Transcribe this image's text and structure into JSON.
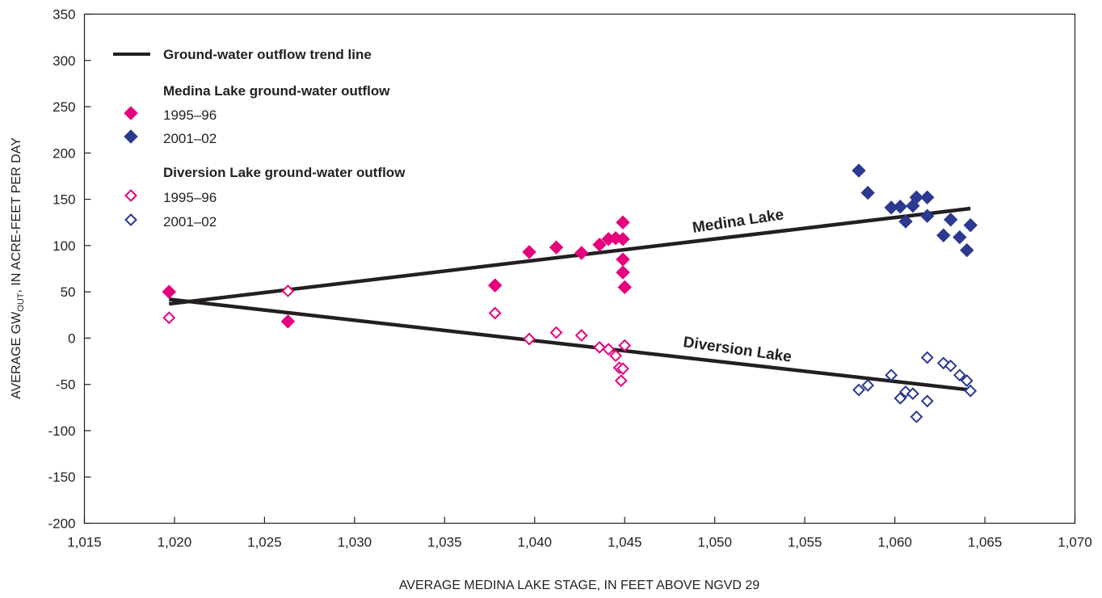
{
  "chart_data": {
    "type": "scatter",
    "xlabel": "AVERAGE MEDINA LAKE STAGE, IN FEET ABOVE NGVD 29",
    "ylabel_main": "AVERAGE GW",
    "ylabel_sub": "OUT",
    "ylabel_rest": ", IN ACRE-FEET PER DAY",
    "xlim": [
      1015,
      1070
    ],
    "ylim": [
      -200,
      350
    ],
    "x_ticks": [
      1015,
      1020,
      1025,
      1030,
      1035,
      1040,
      1045,
      1050,
      1055,
      1060,
      1065,
      1070
    ],
    "x_tick_labels": [
      "1,015",
      "1,020",
      "1,025",
      "1,030",
      "1,035",
      "1,040",
      "1,045",
      "1,050",
      "1,055",
      "1,060",
      "1,065",
      "1,070"
    ],
    "y_ticks": [
      -200,
      -150,
      -100,
      -50,
      0,
      50,
      100,
      150,
      200,
      250,
      300,
      350
    ],
    "y_tick_labels": [
      "-200",
      "-150",
      "-100",
      "-50",
      "0",
      "50",
      "100",
      "150",
      "200",
      "250",
      "300",
      "350"
    ],
    "grid": false,
    "legend": {
      "trend_label": "Ground-water outflow trend line",
      "medina_header": "Medina Lake ground-water outflow",
      "diversion_header": "Diversion Lake ground-water outflow",
      "series_labels": [
        "1995–96",
        "2001–02",
        "1995–96",
        "2001–02"
      ]
    },
    "colors": {
      "pink": "#e6007e",
      "blue": "#2b3990",
      "line": "#231f20"
    },
    "series": [
      {
        "name": "1995–96",
        "group": "Medina Lake ground-water outflow",
        "marker": "filled-diamond",
        "color": "#e6007e",
        "points": [
          [
            1019.7,
            50
          ],
          [
            1026.3,
            18
          ],
          [
            1037.8,
            57
          ],
          [
            1039.7,
            93
          ],
          [
            1041.2,
            98
          ],
          [
            1042.6,
            92
          ],
          [
            1043.6,
            101
          ],
          [
            1044.1,
            107
          ],
          [
            1044.5,
            108
          ],
          [
            1044.9,
            107
          ],
          [
            1044.9,
            125
          ],
          [
            1044.9,
            85
          ],
          [
            1044.9,
            71
          ],
          [
            1045.0,
            55
          ]
        ]
      },
      {
        "name": "2001–02",
        "group": "Medina Lake ground-water outflow",
        "marker": "filled-diamond",
        "color": "#2b3990",
        "points": [
          [
            1058.0,
            181
          ],
          [
            1058.5,
            157
          ],
          [
            1059.8,
            141
          ],
          [
            1060.3,
            142
          ],
          [
            1060.6,
            126
          ],
          [
            1061.0,
            143
          ],
          [
            1061.2,
            152
          ],
          [
            1061.8,
            152
          ],
          [
            1061.8,
            132
          ],
          [
            1062.7,
            111
          ],
          [
            1063.1,
            128
          ],
          [
            1063.6,
            109
          ],
          [
            1064.0,
            95
          ],
          [
            1064.2,
            122
          ]
        ]
      },
      {
        "name": "1995–96",
        "group": "Diversion Lake ground-water outflow",
        "marker": "open-diamond",
        "color": "#e6007e",
        "points": [
          [
            1019.7,
            22
          ],
          [
            1026.3,
            51
          ],
          [
            1037.8,
            27
          ],
          [
            1039.7,
            -1
          ],
          [
            1041.2,
            6
          ],
          [
            1042.6,
            3
          ],
          [
            1043.6,
            -10
          ],
          [
            1044.1,
            -12
          ],
          [
            1044.5,
            -19
          ],
          [
            1044.7,
            -32
          ],
          [
            1044.8,
            -46
          ],
          [
            1044.9,
            -33
          ],
          [
            1045.0,
            -8
          ]
        ]
      },
      {
        "name": "2001–02",
        "group": "Diversion Lake ground-water outflow",
        "marker": "open-diamond",
        "color": "#2b3990",
        "points": [
          [
            1058.0,
            -56
          ],
          [
            1058.5,
            -51
          ],
          [
            1059.8,
            -40
          ],
          [
            1060.3,
            -65
          ],
          [
            1060.6,
            -58
          ],
          [
            1061.0,
            -60
          ],
          [
            1061.2,
            -85
          ],
          [
            1061.8,
            -68
          ],
          [
            1061.8,
            -21
          ],
          [
            1062.7,
            -27
          ],
          [
            1063.1,
            -30
          ],
          [
            1063.6,
            -40
          ],
          [
            1064.0,
            -46
          ],
          [
            1064.2,
            -57
          ]
        ]
      }
    ],
    "trend_lines": [
      {
        "name": "Medina Lake",
        "from": [
          1019.7,
          37
        ],
        "to": [
          1064.2,
          140
        ]
      },
      {
        "name": "Diversion Lake",
        "from": [
          1019.7,
          42
        ],
        "to": [
          1064.2,
          -56
        ]
      }
    ]
  }
}
